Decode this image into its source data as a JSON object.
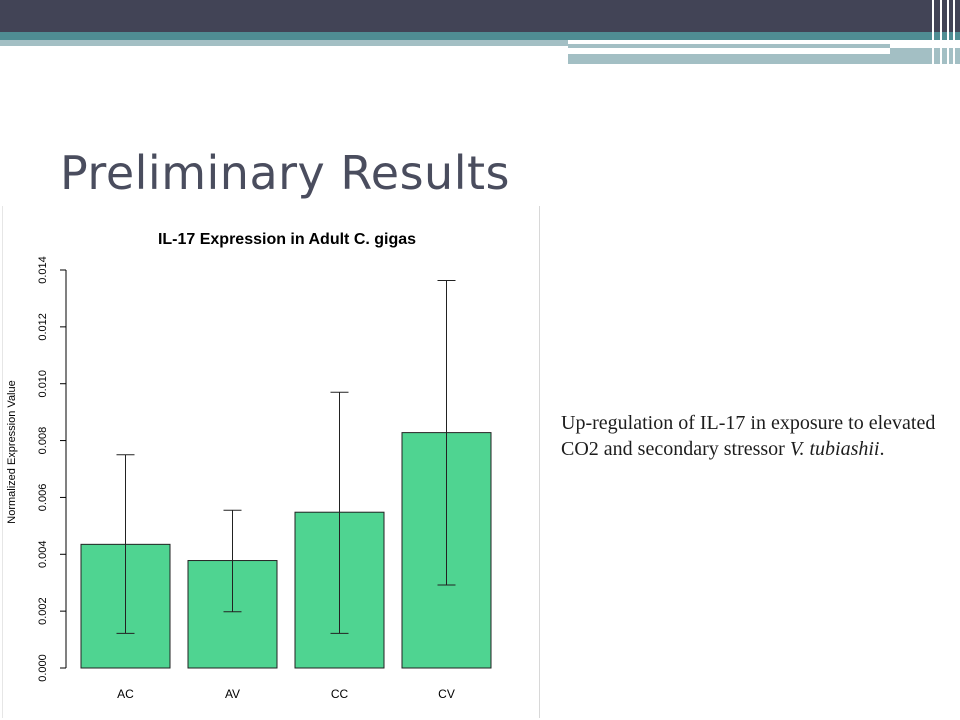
{
  "slide": {
    "title": "Preliminary Results",
    "caption_text": "Up-regulation of IL-17 in exposure to elevated CO2 and secondary stressor ",
    "caption_italic": "V. tubiashii",
    "caption_end": "."
  },
  "colors": {
    "bar_fill": "#4fd491",
    "banner_dark": "#424456",
    "banner_teal": "#4f8d93",
    "title_text": "#4a4d5e"
  },
  "chart_data": {
    "type": "bar",
    "title": "IL-17 Expression in Adult C. gigas",
    "xlabel": "",
    "ylabel": "Normalized Expression Value",
    "categories": [
      "AC",
      "AV",
      "CC",
      "CV"
    ],
    "values": [
      0.00435,
      0.00378,
      0.00548,
      0.00828
    ],
    "error_low": [
      0.00122,
      0.00198,
      0.00122,
      0.00292
    ],
    "error_high": [
      0.0075,
      0.00555,
      0.0097,
      0.01363
    ],
    "ylim": [
      0,
      0.014
    ],
    "yticks": [
      0.0,
      0.002,
      0.004,
      0.006,
      0.008,
      0.01,
      0.012,
      0.014
    ],
    "ytick_labels": [
      "0.000",
      "0.002",
      "0.004",
      "0.006",
      "0.008",
      "0.010",
      "0.012",
      "0.014"
    ],
    "grid": false,
    "legend": "none"
  }
}
